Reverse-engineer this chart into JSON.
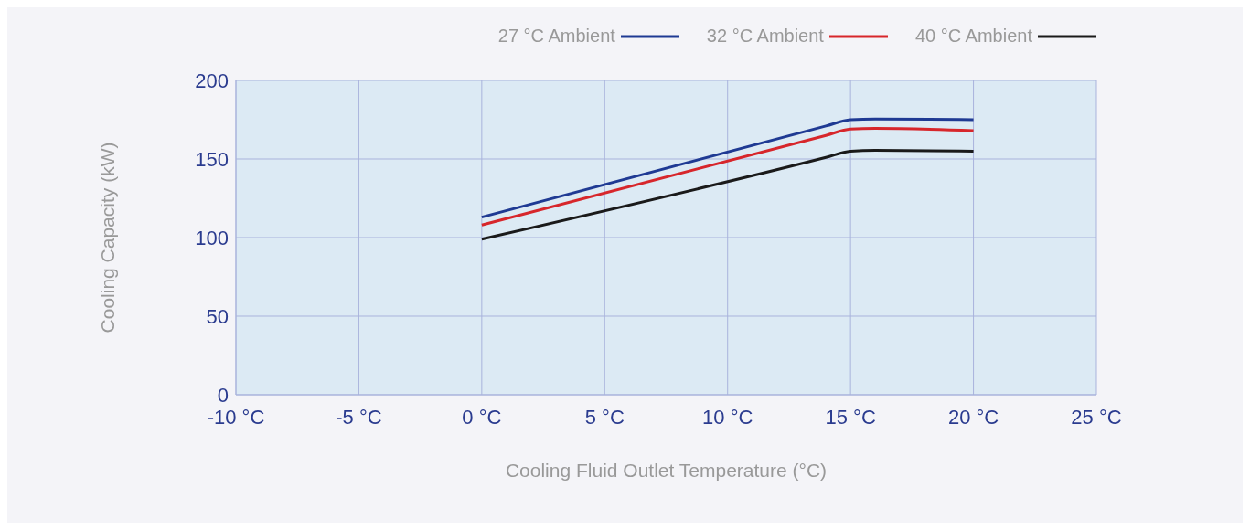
{
  "chart_data": {
    "type": "line",
    "xlabel": "Cooling Fluid Outlet Temperature (°C)",
    "ylabel": "Cooling Capacity (kW)",
    "xlim": [
      -10,
      25
    ],
    "ylim": [
      0,
      200
    ],
    "xticks": [
      {
        "value": -10,
        "label": "-10 °C"
      },
      {
        "value": -5,
        "label": "-5 °C"
      },
      {
        "value": 0,
        "label": "0 °C"
      },
      {
        "value": 5,
        "label": "5 °C"
      },
      {
        "value": 10,
        "label": "10 °C"
      },
      {
        "value": 15,
        "label": "15 °C"
      },
      {
        "value": 20,
        "label": "20 °C"
      },
      {
        "value": 25,
        "label": "25 °C"
      }
    ],
    "yticks": [
      0,
      50,
      100,
      150,
      200
    ],
    "grid": true,
    "legend": "top right",
    "marker": "none",
    "line_style": "solid",
    "series": [
      {
        "name": "27 °C  Ambient",
        "color": "#1f3a93",
        "x": [
          0,
          14,
          15,
          16,
          20
        ],
        "values": [
          113,
          171,
          175,
          175.5,
          175
        ]
      },
      {
        "name": "32 °C  Ambient",
        "color": "#d7262b",
        "x": [
          0,
          14,
          15,
          16,
          20
        ],
        "values": [
          108,
          165,
          169,
          169.5,
          168
        ]
      },
      {
        "name": "40 °C  Ambient",
        "color": "#1a1a1a",
        "x": [
          0,
          14,
          15,
          16,
          20
        ],
        "values": [
          99,
          151,
          155,
          155.5,
          155
        ]
      }
    ]
  }
}
